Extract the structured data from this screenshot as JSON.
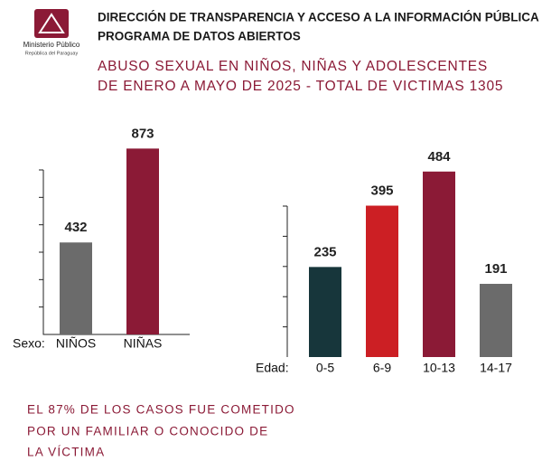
{
  "header": {
    "org_name": "Ministerio Público",
    "org_country": "República del Paraguay",
    "title_line1": "DIRECCIÓN DE TRANSPARENCIA Y ACCESO A LA INFORMACIÓN PÚBLICA",
    "title_line2": "PROGRAMA DE DATOS ABIERTOS",
    "subtitle_line1": "ABUSO SEXUAL EN NIÑOS, NIÑAS Y ADOLESCENTES",
    "subtitle_line2": "DE ENERO A MAYO DE 2025 - TOTAL DE VICTIMAS 1305"
  },
  "chart_data": [
    {
      "type": "bar",
      "x_label": "Sexo:",
      "categories": [
        "NIÑOS",
        "NIÑAS"
      ],
      "values": [
        432,
        873
      ],
      "colors": [
        "#6b6b6b",
        "#8b1a36"
      ],
      "ylim": [
        0,
        900
      ]
    },
    {
      "type": "bar",
      "x_label": "Edad:",
      "categories": [
        "0-5",
        "6-9",
        "10-13",
        "14-17"
      ],
      "values": [
        235,
        395,
        484,
        191
      ],
      "colors": [
        "#17363b",
        "#cc1f24",
        "#8b1a36",
        "#6b6b6b"
      ],
      "ylim": [
        0,
        500
      ]
    }
  ],
  "note": {
    "line1": "EL 87% DE LOS CASOS FUE COMETIDO",
    "line2": "POR UN FAMILIAR O CONOCIDO DE",
    "line3": "LA VÍCTIMA"
  }
}
